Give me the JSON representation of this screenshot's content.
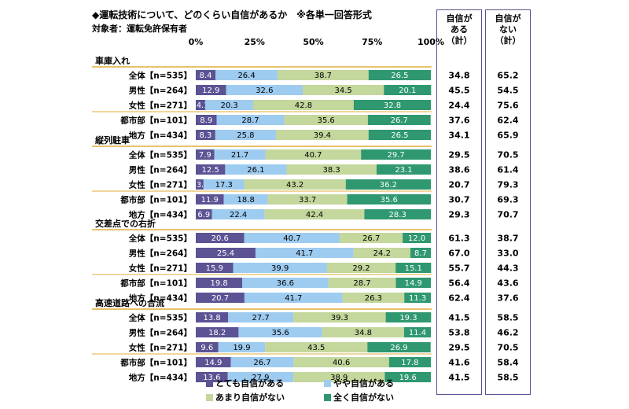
{
  "title": "◆運転技術について、どのくらい自信があるか　※各単一回答形式",
  "subtitle": "対象者：運転免許保有者",
  "summary_headers": {
    "confident": [
      "自信が",
      "ある",
      "（計）"
    ],
    "not_confident": [
      "自信が",
      "ない",
      "（計）"
    ]
  },
  "legend": [
    {
      "label": "とても自信がある",
      "color": "#5b5394"
    },
    {
      "label": "やや自信がある",
      "color": "#9ecbf0"
    },
    {
      "label": "あまり自信がない",
      "color": "#c4d79c"
    },
    {
      "label": "全く自信がない",
      "color": "#2f9870"
    }
  ],
  "chart_data": {
    "type": "bar",
    "orientation": "horizontal-stacked-100",
    "xlim": [
      0,
      100
    ],
    "x_ticks": [
      "0%",
      "25%",
      "50%",
      "75%",
      "100%"
    ],
    "series_names": [
      "とても自信がある",
      "やや自信がある",
      "あまり自信がない",
      "全く自信がない"
    ],
    "colors": [
      "#5b5394",
      "#9ecbf0",
      "#c4d79c",
      "#2f9870"
    ],
    "groups": [
      {
        "name": "車庫入れ",
        "rows": [
          {
            "label": "全体【n=535】",
            "values": [
              8.4,
              26.4,
              38.7,
              26.5
            ],
            "confident": 34.8,
            "not_confident": 65.2
          },
          {
            "label": "男性【n=264】",
            "values": [
              12.9,
              32.6,
              34.5,
              20.1
            ],
            "confident": 45.5,
            "not_confident": 54.5
          },
          {
            "label": "女性【n=271】",
            "values": [
              4.1,
              20.3,
              42.8,
              32.8
            ],
            "confident": 24.4,
            "not_confident": 75.6
          },
          {
            "label": "都市部【n=101】",
            "values": [
              8.9,
              28.7,
              35.6,
              26.7
            ],
            "confident": 37.6,
            "not_confident": 62.4
          },
          {
            "label": "地方【n=434】",
            "values": [
              8.3,
              25.8,
              39.4,
              26.5
            ],
            "confident": 34.1,
            "not_confident": 65.9
          }
        ]
      },
      {
        "name": "縦列駐車",
        "rows": [
          {
            "label": "全体【n=535】",
            "values": [
              7.9,
              21.7,
              40.7,
              29.7
            ],
            "confident": 29.5,
            "not_confident": 70.5
          },
          {
            "label": "男性【n=264】",
            "values": [
              12.5,
              26.1,
              38.3,
              23.1
            ],
            "confident": 38.6,
            "not_confident": 61.4
          },
          {
            "label": "女性【n=271】",
            "values": [
              3.3,
              17.3,
              43.2,
              36.2
            ],
            "confident": 20.7,
            "not_confident": 79.3
          },
          {
            "label": "都市部【n=101】",
            "values": [
              11.9,
              18.8,
              33.7,
              35.6
            ],
            "confident": 30.7,
            "not_confident": 69.3
          },
          {
            "label": "地方【n=434】",
            "values": [
              6.9,
              22.4,
              42.4,
              28.3
            ],
            "confident": 29.3,
            "not_confident": 70.7
          }
        ]
      },
      {
        "name": "交差点での右折",
        "rows": [
          {
            "label": "全体【n=535】",
            "values": [
              20.6,
              40.7,
              26.7,
              12.0
            ],
            "confident": 61.3,
            "not_confident": 38.7
          },
          {
            "label": "男性【n=264】",
            "values": [
              25.4,
              41.7,
              24.2,
              8.7
            ],
            "confident": 67.0,
            "not_confident": 33.0
          },
          {
            "label": "女性【n=271】",
            "values": [
              15.9,
              39.9,
              29.2,
              15.1
            ],
            "confident": 55.7,
            "not_confident": 44.3
          },
          {
            "label": "都市部【n=101】",
            "values": [
              19.8,
              36.6,
              28.7,
              14.9
            ],
            "confident": 56.4,
            "not_confident": 43.6
          },
          {
            "label": "地方【n=434】",
            "values": [
              20.7,
              41.7,
              26.3,
              11.3
            ],
            "confident": 62.4,
            "not_confident": 37.6
          }
        ]
      },
      {
        "name": "高速道路への合流",
        "rows": [
          {
            "label": "全体【n=535】",
            "values": [
              13.8,
              27.7,
              39.3,
              19.3
            ],
            "confident": 41.5,
            "not_confident": 58.5
          },
          {
            "label": "男性【n=264】",
            "values": [
              18.2,
              35.6,
              34.8,
              11.4
            ],
            "confident": 53.8,
            "not_confident": 46.2
          },
          {
            "label": "女性【n=271】",
            "values": [
              9.6,
              19.9,
              43.5,
              26.9
            ],
            "confident": 29.5,
            "not_confident": 70.5
          },
          {
            "label": "都市部【n=101】",
            "values": [
              14.9,
              26.7,
              40.6,
              17.8
            ],
            "confident": 41.6,
            "not_confident": 58.4
          },
          {
            "label": "地方【n=434】",
            "values": [
              13.6,
              27.9,
              38.9,
              19.6
            ],
            "confident": 41.5,
            "not_confident": 58.5
          }
        ]
      }
    ]
  }
}
